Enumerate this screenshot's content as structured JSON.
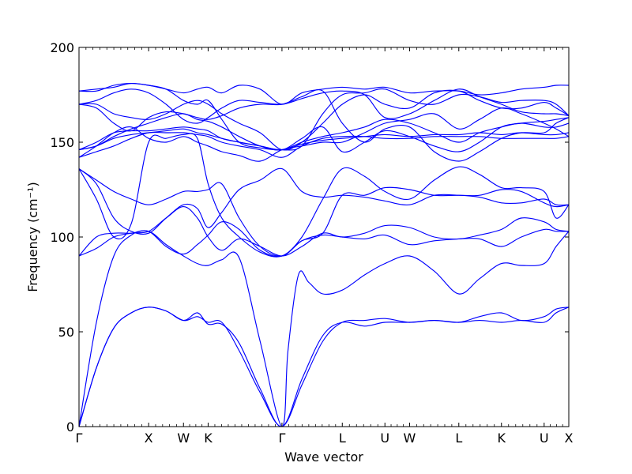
{
  "chart_data": {
    "type": "line",
    "title": "",
    "xlabel": "Wave vector",
    "ylabel": "Frequency (cm⁻¹)",
    "ylim": [
      0,
      200
    ],
    "yticks": [
      "0",
      "50",
      "100",
      "150",
      "200"
    ],
    "high_symmetry_points": [
      {
        "label": "Γ",
        "x": 0.0
      },
      {
        "label": "X",
        "x": 1.0
      },
      {
        "label": "W",
        "x": 1.5
      },
      {
        "label": "K",
        "x": 1.854
      },
      {
        "label": "Γ",
        "x": 2.914
      },
      {
        "label": "L",
        "x": 3.78
      },
      {
        "label": "U",
        "x": 4.392
      },
      {
        "label": "W",
        "x": 4.746
      },
      {
        "label": "L",
        "x": 5.453
      },
      {
        "label": "K",
        "x": 6.065
      },
      {
        "label": "U",
        "x": 6.678
      },
      {
        "label": "X",
        "x": 7.032
      }
    ],
    "x_range": [
      0,
      7.032
    ],
    "grid": false,
    "line_color": "#0000ff",
    "series": [
      {
        "x": [
          0,
          0.25,
          0.5,
          0.75,
          1.0,
          1.25,
          1.5,
          1.7,
          1.854,
          2.05,
          2.3,
          2.6,
          2.914,
          3.2,
          3.5,
          3.78,
          4.1,
          4.392,
          4.746,
          5.1,
          5.453,
          5.75,
          6.065,
          6.35,
          6.678,
          6.85,
          7.032
        ],
        "values": [
          0,
          31,
          52,
          60,
          63,
          61,
          56,
          58,
          55,
          55,
          40,
          18,
          0,
          22,
          45,
          55,
          56,
          57,
          55,
          56,
          55,
          56,
          55,
          56,
          55,
          60,
          63
        ]
      },
      {
        "x": [
          0,
          0.25,
          0.5,
          0.75,
          1.0,
          1.25,
          1.5,
          1.7,
          1.854,
          2.05,
          2.3,
          2.6,
          2.914,
          3.2,
          3.5,
          3.78,
          4.1,
          4.392,
          4.746,
          5.1,
          5.453,
          5.75,
          6.065,
          6.35,
          6.678,
          6.85,
          7.032
        ],
        "values": [
          0,
          31,
          52,
          60,
          63,
          61,
          56,
          60,
          54,
          54,
          44,
          20,
          0,
          25,
          48,
          55,
          53,
          55,
          55,
          56,
          55,
          58,
          60,
          56,
          58,
          62,
          63
        ]
      },
      {
        "x": [
          0,
          0.25,
          0.5,
          0.75,
          1.0,
          1.25,
          1.5,
          1.7,
          1.854,
          2.05,
          2.3,
          2.6,
          2.914,
          3.0,
          3.15,
          3.3,
          3.5,
          3.78,
          4.1,
          4.392,
          4.746,
          5.1,
          5.453,
          5.75,
          6.065,
          6.35,
          6.678,
          6.85,
          7.032
        ],
        "values": [
          0,
          55,
          90,
          101,
          103,
          96,
          90,
          86,
          85,
          88,
          89,
          45,
          0,
          40,
          80,
          76,
          70,
          72,
          80,
          86,
          90,
          82,
          70,
          78,
          86,
          85,
          86,
          95,
          103
        ]
      },
      {
        "x": [
          0,
          0.25,
          0.5,
          0.75,
          1.0,
          1.25,
          1.5,
          1.7,
          1.854,
          2.05,
          2.3,
          2.6,
          2.914,
          3.2,
          3.5,
          3.78,
          4.1,
          4.392,
          4.746,
          5.1,
          5.453,
          5.75,
          6.065,
          6.35,
          6.678,
          6.85,
          7.032
        ],
        "values": [
          90,
          94,
          100,
          102,
          103,
          110,
          116,
          110,
          100,
          93,
          99,
          95,
          90,
          95,
          102,
          100,
          102,
          106,
          105,
          100,
          99,
          101,
          104,
          110,
          108,
          104,
          103
        ]
      },
      {
        "x": [
          0,
          0.25,
          0.5,
          0.75,
          1.0,
          1.25,
          1.5,
          1.7,
          1.854,
          2.05,
          2.3,
          2.6,
          2.914,
          3.2,
          3.5,
          3.78,
          4.1,
          4.392,
          4.746,
          5.1,
          5.453,
          5.75,
          6.065,
          6.35,
          6.678,
          6.85,
          7.032
        ],
        "values": [
          90,
          100,
          102,
          102,
          103,
          95,
          91,
          96,
          101,
          108,
          104,
          93,
          90,
          98,
          101,
          100,
          99,
          101,
          96,
          98,
          99,
          99,
          95,
          100,
          104,
          103,
          103
        ]
      },
      {
        "x": [
          0,
          0.25,
          0.5,
          0.75,
          1.0,
          1.25,
          1.5,
          1.7,
          1.854,
          2.05,
          2.3,
          2.6,
          2.914,
          3.2,
          3.5,
          3.78,
          4.1,
          4.392,
          4.746,
          5.1,
          5.453,
          5.75,
          6.065,
          6.35,
          6.678,
          6.85,
          7.032
        ],
        "values": [
          136,
          130,
          124,
          120,
          117,
          120,
          124,
          124,
          125,
          128,
          110,
          95,
          90,
          98,
          102,
          122,
          122,
          126,
          125,
          122,
          122,
          122,
          125,
          124,
          118,
          116,
          117
        ]
      },
      {
        "x": [
          0,
          0.25,
          0.5,
          0.75,
          1.0,
          1.25,
          1.5,
          1.7,
          1.854,
          2.05,
          2.3,
          2.6,
          2.914,
          3.2,
          3.5,
          3.78,
          4.1,
          4.392,
          4.746,
          5.1,
          5.453,
          5.75,
          6.065,
          6.35,
          6.678,
          6.85,
          7.032
        ],
        "values": [
          136,
          128,
          110,
          103,
          102,
          110,
          117,
          115,
          105,
          113,
          125,
          130,
          136,
          124,
          121,
          122,
          121,
          119,
          117,
          122,
          122,
          121,
          118,
          118,
          120,
          117,
          117
        ]
      },
      {
        "x": [
          0,
          0.25,
          0.5,
          0.75,
          1.0,
          1.25,
          1.5,
          1.7,
          1.854,
          2.05,
          2.3,
          2.6,
          2.914,
          3.2,
          3.5,
          3.78,
          4.1,
          4.392,
          4.746,
          5.1,
          5.453,
          5.75,
          6.065,
          6.35,
          6.678,
          6.85,
          7.032
        ],
        "values": [
          136,
          120,
          100,
          107,
          150,
          152,
          154,
          152,
          128,
          110,
          100,
          92,
          90,
          100,
          120,
          136,
          132,
          124,
          120,
          130,
          137,
          133,
          126,
          126,
          124,
          110,
          117
        ]
      },
      {
        "x": [
          0,
          0.25,
          0.5,
          0.75,
          1.0,
          1.25,
          1.5,
          1.7,
          1.854,
          2.05,
          2.3,
          2.6,
          2.914,
          3.2,
          3.5,
          3.78,
          4.1,
          4.392,
          4.746,
          5.1,
          5.453,
          5.75,
          6.065,
          6.35,
          6.678,
          6.85,
          7.032
        ],
        "values": [
          142,
          145,
          148,
          152,
          155,
          155,
          155,
          154,
          153,
          150,
          148,
          146,
          142,
          148,
          152,
          153,
          153,
          152,
          152,
          153,
          153,
          153,
          152,
          152,
          152,
          152,
          153
        ]
      },
      {
        "x": [
          0,
          0.25,
          0.5,
          0.75,
          1.0,
          1.25,
          1.5,
          1.7,
          1.854,
          2.05,
          2.3,
          2.6,
          2.914,
          3.2,
          3.5,
          3.78,
          4.1,
          4.392,
          4.746,
          5.1,
          5.453,
          5.75,
          6.065,
          6.35,
          6.678,
          6.85,
          7.032
        ],
        "values": [
          146,
          148,
          152,
          154,
          155,
          156,
          157,
          155,
          154,
          152,
          150,
          148,
          146,
          149,
          151,
          152,
          153,
          154,
          153,
          154,
          154,
          155,
          154,
          155,
          154,
          154,
          155
        ]
      },
      {
        "x": [
          0,
          0.25,
          0.5,
          0.75,
          1.0,
          1.25,
          1.5,
          1.7,
          1.854,
          2.05,
          2.3,
          2.6,
          2.914,
          3.2,
          3.5,
          3.78,
          4.1,
          4.392,
          4.746,
          5.1,
          5.453,
          5.75,
          6.065,
          6.35,
          6.678,
          6.85,
          7.032
        ],
        "values": [
          146,
          150,
          155,
          156,
          156,
          157,
          158,
          157,
          156,
          152,
          150,
          148,
          146,
          150,
          153,
          155,
          158,
          162,
          160,
          155,
          150,
          155,
          158,
          160,
          158,
          158,
          160
        ]
      },
      {
        "x": [
          0,
          0.25,
          0.5,
          0.75,
          1.0,
          1.25,
          1.5,
          1.7,
          1.854,
          2.05,
          2.3,
          2.6,
          2.914,
          3.2,
          3.5,
          3.78,
          4.1,
          4.392,
          4.746,
          5.1,
          5.453,
          5.75,
          6.065,
          6.35,
          6.678,
          6.85,
          7.032
        ],
        "values": [
          146,
          148,
          153,
          157,
          160,
          163,
          165,
          162,
          161,
          158,
          153,
          148,
          146,
          152,
          158,
          145,
          150,
          156,
          153,
          148,
          145,
          150,
          158,
          160,
          161,
          162,
          163
        ]
      },
      {
        "x": [
          0,
          0.25,
          0.5,
          0.75,
          1.0,
          1.25,
          1.5,
          1.7,
          1.854,
          2.05,
          2.3,
          2.6,
          2.914,
          3.2,
          3.5,
          3.78,
          4.1,
          4.392,
          4.746,
          5.1,
          5.453,
          5.75,
          6.065,
          6.35,
          6.678,
          6.85,
          7.032
        ],
        "values": [
          170,
          168,
          160,
          156,
          163,
          166,
          165,
          163,
          162,
          164,
          168,
          170,
          170,
          174,
          177,
          160,
          150,
          157,
          158,
          145,
          140,
          145,
          152,
          155,
          155,
          160,
          163
        ]
      },
      {
        "x": [
          0,
          0.25,
          0.5,
          0.75,
          1.0,
          1.25,
          1.5,
          1.7,
          1.854,
          2.05,
          2.3,
          2.6,
          2.914,
          3.2,
          3.5,
          3.78,
          4.1,
          4.392,
          4.746,
          5.1,
          5.453,
          5.75,
          6.065,
          6.35,
          6.678,
          6.85,
          7.032
        ],
        "values": [
          170,
          172,
          176,
          178,
          176,
          170,
          162,
          160,
          163,
          168,
          172,
          171,
          170,
          173,
          176,
          177,
          175,
          163,
          165,
          172,
          178,
          174,
          170,
          166,
          165,
          165,
          164
        ]
      },
      {
        "x": [
          0,
          0.25,
          0.5,
          0.75,
          1.0,
          1.25,
          1.5,
          1.7,
          1.854,
          2.05,
          2.3,
          2.6,
          2.914,
          3.2,
          3.5,
          3.78,
          4.1,
          4.392,
          4.746,
          5.1,
          5.453,
          5.75,
          6.065,
          6.35,
          6.678,
          6.85,
          7.032
        ],
        "values": [
          177,
          178,
          179,
          181,
          180,
          178,
          172,
          170,
          172,
          162,
          150,
          147,
          146,
          148,
          165,
          175,
          176,
          178,
          172,
          170,
          175,
          174,
          171,
          172,
          172,
          170,
          164
        ]
      },
      {
        "x": [
          0,
          0.25,
          0.5,
          0.75,
          1.0,
          1.25,
          1.5,
          1.7,
          1.854,
          2.05,
          2.3,
          2.6,
          2.914,
          3.2,
          3.5,
          3.78,
          4.1,
          4.392,
          4.746,
          5.1,
          5.453,
          5.75,
          6.065,
          6.35,
          6.678,
          6.85,
          7.032
        ],
        "values": [
          177,
          177,
          180,
          181,
          180,
          178,
          176,
          178,
          179,
          176,
          180,
          178,
          170,
          176,
          178,
          179,
          178,
          179,
          176,
          177,
          177,
          175,
          176,
          178,
          179,
          180,
          180
        ]
      },
      {
        "x": [
          0,
          0.25,
          0.5,
          0.75,
          1.0,
          1.25,
          1.5,
          1.7,
          1.854,
          2.05,
          2.3,
          2.6,
          2.914,
          3.2,
          3.5,
          3.78,
          4.1,
          4.392,
          4.746,
          5.1,
          5.453,
          5.75,
          6.065,
          6.35,
          6.678,
          6.85,
          7.032
        ],
        "values": [
          170,
          170,
          165,
          163,
          162,
          165,
          170,
          172,
          170,
          165,
          160,
          155,
          146,
          150,
          160,
          170,
          175,
          170,
          168,
          176,
          177,
          172,
          168,
          168,
          171,
          168,
          164
        ]
      },
      {
        "x": [
          0,
          0.25,
          0.5,
          0.75,
          1.0,
          1.25,
          1.5,
          1.7,
          1.854,
          2.05,
          2.3,
          2.6,
          2.914,
          3.2,
          3.5,
          3.78,
          4.1,
          4.392,
          4.746,
          5.1,
          5.453,
          5.75,
          6.065,
          6.35,
          6.678,
          6.85,
          7.032
        ],
        "values": [
          142,
          148,
          155,
          158,
          152,
          150,
          153,
          150,
          148,
          145,
          143,
          140,
          146,
          148,
          150,
          150,
          155,
          160,
          162,
          165,
          157,
          162,
          168,
          165,
          160,
          157,
          153
        ]
      }
    ]
  }
}
